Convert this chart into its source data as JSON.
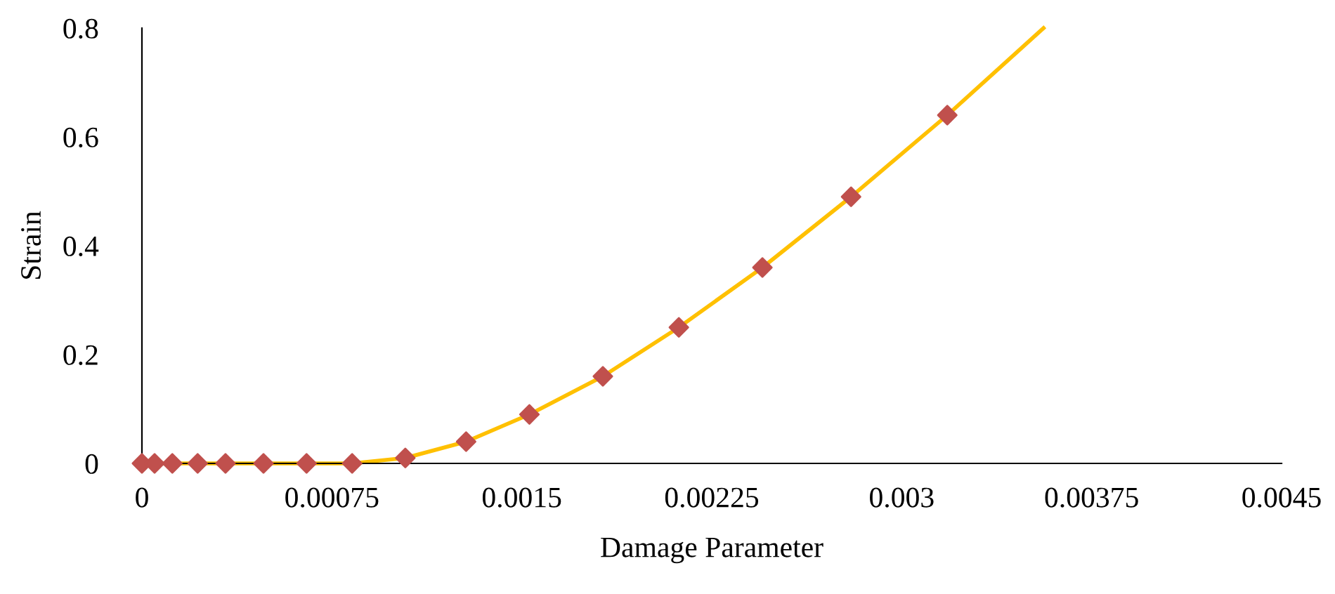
{
  "chart_data": {
    "type": "scatter",
    "xlabel": "Damage Parameter",
    "ylabel": "Strain",
    "xlim": [
      0,
      0.0045
    ],
    "ylim": [
      0,
      0.8
    ],
    "xticks": [
      0,
      0.00075,
      0.0015,
      0.00225,
      0.003,
      0.00375,
      0.0045
    ],
    "yticks": [
      {
        "value": 0,
        "label": "0"
      },
      0.2,
      0.4,
      0.6,
      0.8
    ],
    "grid": false,
    "legend": false,
    "series": [
      {
        "type": "line",
        "color": "#ffc000",
        "marker": "none",
        "line_style": "solid",
        "x": [
          0,
          5e-05,
          0.00012,
          0.00022,
          0.00033,
          0.00048,
          0.00065,
          0.00083,
          0.00104,
          0.00128,
          0.00153,
          0.00182,
          0.00212,
          0.00245,
          0.0028,
          0.00318,
          0.00356
        ],
        "values": [
          0,
          0,
          0,
          0,
          0,
          0,
          0,
          0,
          0.01,
          0.04,
          0.09,
          0.16,
          0.25,
          0.36,
          0.49,
          0.64,
          0.8
        ]
      },
      {
        "color": "#c0504d",
        "marker": "diamond",
        "x": [
          0,
          5e-05,
          0.00012,
          0.00022,
          0.00033,
          0.00048,
          0.00065,
          0.00083,
          0.00104,
          0.00128,
          0.00153,
          0.00182,
          0.00212,
          0.00245,
          0.0028,
          0.00318
        ],
        "values": [
          0,
          0,
          0,
          0,
          0,
          0,
          0,
          0,
          0.01,
          0.04,
          0.09,
          0.16,
          0.25,
          0.36,
          0.49,
          0.64
        ]
      }
    ]
  }
}
